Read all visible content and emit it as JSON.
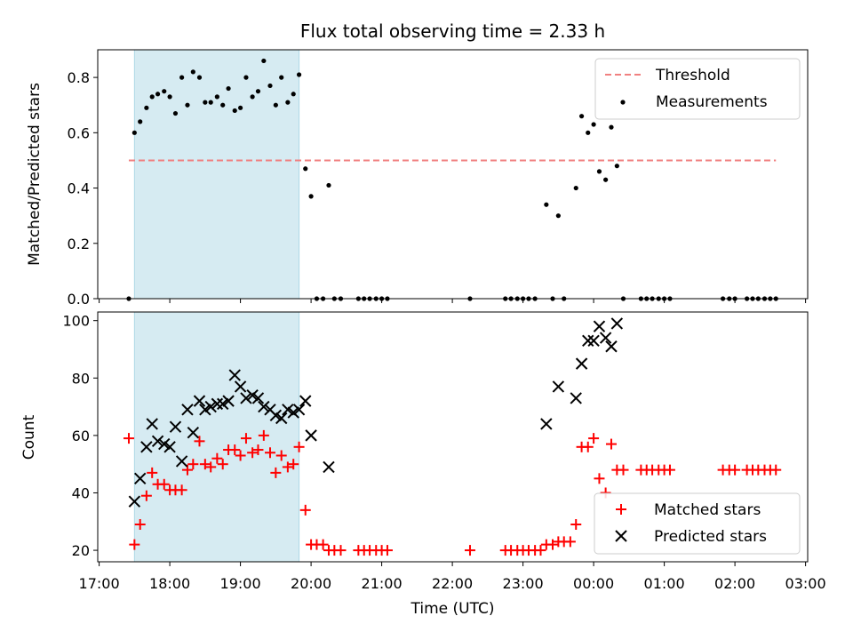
{
  "chart_data": [
    {
      "type": "scatter",
      "title": "Flux total observing time = 2.33 h",
      "xlabel": "",
      "ylabel": "Matched/Predicted stars",
      "ylim": [
        0,
        0.9
      ],
      "yticks": [
        0.0,
        0.2,
        0.4,
        0.6,
        0.8
      ],
      "ytick_labels": [
        "0.0",
        "0.2",
        "0.4",
        "0.6",
        "0.8"
      ],
      "xlim": [
        16.98,
        27.03
      ],
      "grid": false,
      "legend_position": "top-right",
      "shaded_span": {
        "start": 17.5,
        "end": 19.83,
        "color": "#add8e6"
      },
      "threshold": {
        "name": "Threshold",
        "y": 0.5,
        "x_start": 17.42,
        "x_end": 26.58,
        "color": "#f08080"
      },
      "series": [
        {
          "name": "Measurements",
          "color": "#000000",
          "x": [
            17.42,
            17.5,
            17.58,
            17.67,
            17.75,
            17.83,
            17.92,
            18.0,
            18.08,
            18.17,
            18.25,
            18.33,
            18.42,
            18.5,
            18.58,
            18.67,
            18.75,
            18.83,
            18.92,
            19.0,
            19.08,
            19.17,
            19.25,
            19.33,
            19.42,
            19.5,
            19.58,
            19.67,
            19.75,
            19.83,
            19.92,
            20.0,
            20.08,
            20.17,
            20.25,
            20.33,
            20.42,
            20.67,
            20.75,
            20.83,
            20.92,
            21.0,
            21.08,
            22.25,
            22.75,
            22.83,
            22.92,
            23.0,
            23.08,
            23.17,
            23.33,
            23.42,
            23.5,
            23.58,
            23.75,
            23.83,
            23.92,
            24.0,
            24.08,
            24.17,
            24.25,
            24.33,
            24.42,
            24.67,
            24.75,
            24.83,
            24.92,
            25.0,
            25.08,
            25.83,
            25.92,
            26.0,
            26.17,
            26.25,
            26.33,
            26.42,
            26.5,
            26.58
          ],
          "y": [
            0.0,
            0.6,
            0.64,
            0.69,
            0.73,
            0.74,
            0.75,
            0.73,
            0.67,
            0.8,
            0.7,
            0.82,
            0.8,
            0.71,
            0.71,
            0.73,
            0.7,
            0.76,
            0.68,
            0.69,
            0.8,
            0.73,
            0.75,
            0.86,
            0.77,
            0.7,
            0.8,
            0.71,
            0.74,
            0.81,
            0.47,
            0.37,
            0.0,
            0.0,
            0.41,
            0.0,
            0.0,
            0.0,
            0.0,
            0.0,
            0.0,
            0.0,
            0.0,
            0.0,
            0.0,
            0.0,
            0.0,
            0.0,
            0.0,
            0.0,
            0.34,
            0.0,
            0.3,
            0.0,
            0.4,
            0.66,
            0.6,
            0.63,
            0.46,
            0.43,
            0.62,
            0.48,
            0.0,
            0.0,
            0.0,
            0.0,
            0.0,
            0.0,
            0.0,
            0.0,
            0.0,
            0.0,
            0.0,
            0.0,
            0.0,
            0.0,
            0.0,
            0.0
          ]
        }
      ]
    },
    {
      "type": "scatter",
      "title": "",
      "xlabel": "Time (UTC)",
      "ylabel": "Count",
      "ylim": [
        16,
        103
      ],
      "yticks": [
        20,
        40,
        60,
        80,
        100
      ],
      "ytick_labels": [
        "20",
        "40",
        "60",
        "80",
        "100"
      ],
      "xlim": [
        16.98,
        27.03
      ],
      "xticks": [
        17,
        18,
        19,
        20,
        21,
        22,
        23,
        24,
        25,
        26,
        27
      ],
      "xtick_labels": [
        "17:00",
        "18:00",
        "19:00",
        "20:00",
        "21:00",
        "22:00",
        "23:00",
        "00:00",
        "01:00",
        "02:00",
        "03:00"
      ],
      "grid": false,
      "legend_position": "bottom-right",
      "shaded_span": {
        "start": 17.5,
        "end": 19.83,
        "color": "#add8e6"
      },
      "series": [
        {
          "name": "Matched stars",
          "color": "#ff0000",
          "marker": "plus",
          "x": [
            17.42,
            17.5,
            17.58,
            17.67,
            17.75,
            17.83,
            17.92,
            18.0,
            18.08,
            18.17,
            18.25,
            18.33,
            18.42,
            18.5,
            18.58,
            18.67,
            18.75,
            18.83,
            18.92,
            19.0,
            19.08,
            19.17,
            19.25,
            19.33,
            19.42,
            19.5,
            19.58,
            19.67,
            19.75,
            19.83,
            19.92,
            20.0,
            20.08,
            20.17,
            20.25,
            20.33,
            20.42,
            20.67,
            20.75,
            20.83,
            20.92,
            21.0,
            21.08,
            22.25,
            22.75,
            22.83,
            22.92,
            23.0,
            23.08,
            23.17,
            23.25,
            23.33,
            23.42,
            23.5,
            23.58,
            23.67,
            23.75,
            23.83,
            23.92,
            24.0,
            24.08,
            24.17,
            24.25,
            24.33,
            24.42,
            24.67,
            24.75,
            24.83,
            24.92,
            25.0,
            25.08,
            25.83,
            25.92,
            26.0,
            26.17,
            26.25,
            26.33,
            26.42,
            26.5,
            26.58
          ],
          "y": [
            59,
            22,
            29,
            39,
            47,
            43,
            43,
            41,
            41,
            41,
            48,
            50,
            58,
            50,
            49,
            52,
            50,
            55,
            55,
            53,
            59,
            54,
            55,
            60,
            54,
            47,
            53,
            49,
            50,
            56,
            34,
            22,
            22,
            22,
            20,
            20,
            20,
            20,
            20,
            20,
            20,
            20,
            20,
            20,
            20,
            20,
            20,
            20,
            20,
            20,
            20,
            22,
            22,
            23,
            23,
            23,
            29,
            56,
            56,
            59,
            45,
            40,
            57,
            48,
            48,
            48,
            48,
            48,
            48,
            48,
            48,
            48,
            48,
            48,
            48,
            48,
            48,
            48,
            48,
            48
          ]
        },
        {
          "name": "Predicted stars",
          "color": "#000000",
          "marker": "x",
          "x": [
            17.5,
            17.58,
            17.67,
            17.75,
            17.83,
            17.92,
            18.0,
            18.08,
            18.17,
            18.25,
            18.33,
            18.42,
            18.5,
            18.58,
            18.67,
            18.75,
            18.83,
            18.92,
            19.0,
            19.08,
            19.17,
            19.25,
            19.33,
            19.42,
            19.5,
            19.58,
            19.67,
            19.75,
            19.83,
            19.92,
            20.0,
            20.25,
            23.33,
            23.5,
            23.75,
            23.83,
            23.92,
            24.0,
            24.08,
            24.17,
            24.25,
            24.33
          ],
          "y": [
            37,
            45,
            56,
            64,
            58,
            57,
            56,
            63,
            51,
            69,
            61,
            72,
            69,
            70,
            71,
            71,
            72,
            81,
            77,
            73,
            74,
            73,
            70,
            69,
            67,
            66,
            69,
            68,
            69,
            72,
            60,
            49,
            64,
            77,
            73,
            85,
            93,
            93,
            98,
            94,
            91,
            99
          ]
        }
      ]
    }
  ]
}
